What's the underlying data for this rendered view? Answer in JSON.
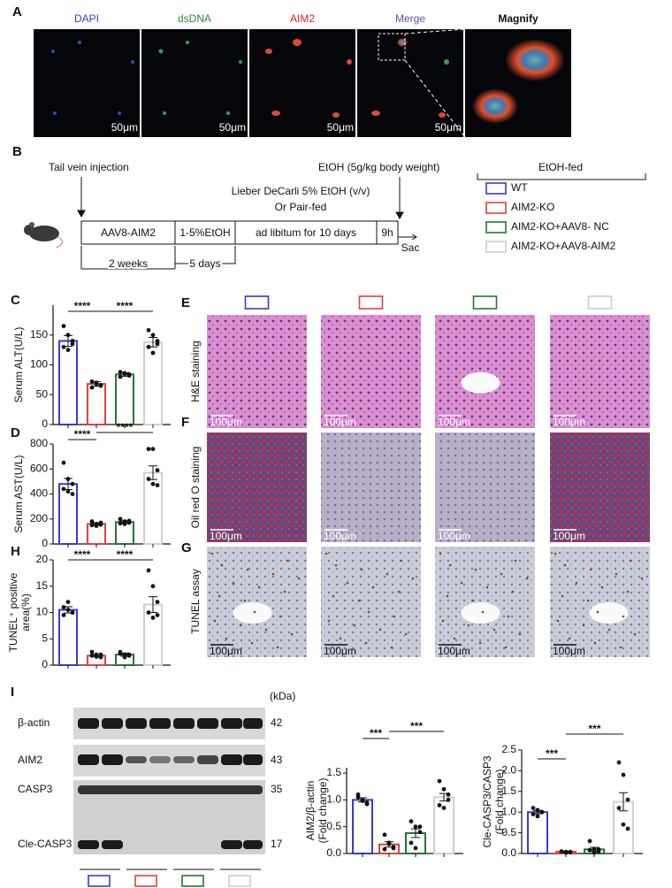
{
  "figure": {
    "panel_letters": [
      "A",
      "B",
      "C",
      "D",
      "E",
      "F",
      "G",
      "H",
      "I"
    ],
    "panel_a": {
      "channels": [
        "DAPI",
        "dsDNA",
        "AIM2",
        "Merge",
        "Magnify"
      ],
      "scale_bar": "50μm"
    },
    "panel_b": {
      "injection": "Tail vein injection",
      "ethanol_gavage": "EtOH (5g/kg body weight)",
      "diet_line1": "Lieber DeCarli 5% EtOH (v/v)",
      "diet_line2": "Or Pair-fed",
      "timeline": [
        "AAV8-AIM2",
        "1-5%EtOH",
        "ad libitum for 10 days",
        "9h"
      ],
      "end": "Sac",
      "durations": [
        "2 weeks",
        "5 days"
      ],
      "legend_title": "EtOH-fed"
    },
    "groups": [
      {
        "name": "WT",
        "color": "#3a3ad2"
      },
      {
        "name": "AIM2-KO",
        "color": "#e2433b"
      },
      {
        "name": "AIM2-KO+AAV8- NC",
        "color": "#1f7a2f"
      },
      {
        "name": "AIM2-KO+AAV8-AIM2",
        "color": "#cfcfcf"
      }
    ],
    "panel_efg": {
      "rows": [
        "H&E staining",
        "Oil red O  staining",
        "TUNEL assay"
      ],
      "scale_bar": "100μm"
    },
    "panel_i": {
      "unit": "(kDa)",
      "blots": [
        {
          "label": "β-actin",
          "kda": "42"
        },
        {
          "label": "AIM2",
          "kda": "43"
        },
        {
          "label": "CASP3",
          "kda": "35"
        },
        {
          "label": "Cle-CASP3",
          "kda": "17"
        }
      ]
    }
  },
  "chart_data": [
    {
      "type": "bar",
      "y_label": [
        "Serum ALT(U/L)"
      ],
      "ylim": [
        0,
        200
      ],
      "yticks": [
        0,
        50,
        100,
        150
      ],
      "values": [
        140,
        68,
        84,
        138
      ],
      "errors": [
        9,
        4,
        3,
        8
      ],
      "points": [
        [
          165,
          150,
          140,
          130,
          125,
          135
        ],
        [
          72,
          68,
          65,
          62,
          70,
          66
        ],
        [
          88,
          85,
          82,
          80,
          86,
          84
        ],
        [
          158,
          150,
          140,
          130,
          120,
          135
        ]
      ],
      "comparisons": [
        {
          "label": "****",
          "groups": [
            0,
            1
          ]
        },
        {
          "label": "****",
          "groups": [
            1,
            3
          ]
        }
      ]
    },
    {
      "type": "bar",
      "y_label": [
        "Serum AST(U/L)"
      ],
      "ylim": [
        0,
        800
      ],
      "yticks": [
        0,
        200,
        400,
        600,
        800
      ],
      "values": [
        480,
        160,
        175,
        570
      ],
      "errors": [
        45,
        10,
        10,
        55
      ],
      "points": [
        [
          650,
          520,
          480,
          440,
          420,
          400
        ],
        [
          180,
          160,
          155,
          150,
          145,
          170
        ],
        [
          200,
          180,
          170,
          165,
          160,
          185
        ],
        [
          760,
          760,
          590,
          520,
          480,
          470
        ]
      ],
      "comparisons": [
        {
          "label": "****",
          "groups": [
            0,
            1
          ]
        },
        {
          "label": "****",
          "groups": [
            1,
            3
          ]
        }
      ]
    },
    {
      "type": "bar",
      "y_label": [
        "TUNEL⁺ positive",
        "area(%)"
      ],
      "ylim": [
        0,
        20
      ],
      "yticks": [
        0,
        5,
        10,
        15,
        20
      ],
      "values": [
        10.5,
        1.8,
        2,
        11.5
      ],
      "errors": [
        0.6,
        0.2,
        0.3,
        1.5
      ],
      "points": [
        [
          11,
          10.5,
          10,
          9.5,
          12,
          10
        ],
        [
          2.5,
          2,
          1.5,
          1.8,
          1.6,
          2
        ],
        [
          2.2,
          2,
          1.8,
          2.5,
          1.5,
          2
        ],
        [
          18,
          15,
          12,
          10,
          9,
          9.5
        ]
      ],
      "comparisons": [
        {
          "label": "****",
          "groups": [
            0,
            1
          ]
        },
        {
          "label": "****",
          "groups": [
            1,
            3
          ]
        }
      ]
    },
    {
      "type": "bar",
      "y_label": [
        "AIM2/β-actin",
        "(Fold change)"
      ],
      "ylim": [
        0,
        1.6
      ],
      "yticks": [
        {
          "value": 0,
          "label": "0.0"
        },
        {
          "value": 0.5,
          "label": "0.5"
        },
        {
          "value": 1,
          "label": "1.0"
        },
        {
          "value": 1.5,
          "label": "1.5"
        }
      ],
      "values": [
        1.0,
        0.17,
        0.38,
        1.05
      ],
      "errors": [
        0.04,
        0.05,
        0.08,
        0.07
      ],
      "points": [
        [
          1.05,
          1.0,
          0.95,
          1.1,
          0.98,
          0.92
        ],
        [
          0.35,
          0.2,
          0.1,
          0.08,
          0.18,
          0.12
        ],
        [
          0.6,
          0.5,
          0.4,
          0.2,
          0.1,
          0.5
        ],
        [
          1.35,
          1.2,
          1.0,
          0.9,
          0.85,
          1.1
        ]
      ],
      "comparisons": [
        {
          "label": "***",
          "groups": [
            0,
            1
          ]
        },
        {
          "label": "***",
          "groups": [
            1,
            3
          ]
        }
      ]
    },
    {
      "type": "bar",
      "y_label": [
        "Cle-CASP3/CASP3",
        "(Fold change)"
      ],
      "ylim": [
        0,
        2.5
      ],
      "yticks": [
        {
          "value": 0,
          "label": "0.0"
        },
        {
          "value": 0.5,
          "label": "0.5"
        },
        {
          "value": 1,
          "label": "1.0"
        },
        {
          "value": 1.5,
          "label": "1.5"
        },
        {
          "value": 2,
          "label": "2.0"
        },
        {
          "value": 2.5,
          "label": "2.5"
        }
      ],
      "values": [
        1.0,
        0.04,
        0.1,
        1.25
      ],
      "errors": [
        0.04,
        0.01,
        0.05,
        0.22
      ],
      "points": [
        [
          1.1,
          1.05,
          1.0,
          0.95,
          0.9,
          1.0
        ],
        [
          0.05,
          0.04,
          0.03,
          0.05,
          0.02,
          0.04
        ],
        [
          0.3,
          0.1,
          0.05,
          0.08,
          0.02,
          0.1
        ],
        [
          2.2,
          1.9,
          1.3,
          1.1,
          0.7,
          0.6
        ]
      ],
      "comparisons": [
        {
          "label": "***",
          "groups": [
            0,
            1
          ]
        },
        {
          "label": "***",
          "groups": [
            1,
            3
          ]
        }
      ]
    }
  ]
}
